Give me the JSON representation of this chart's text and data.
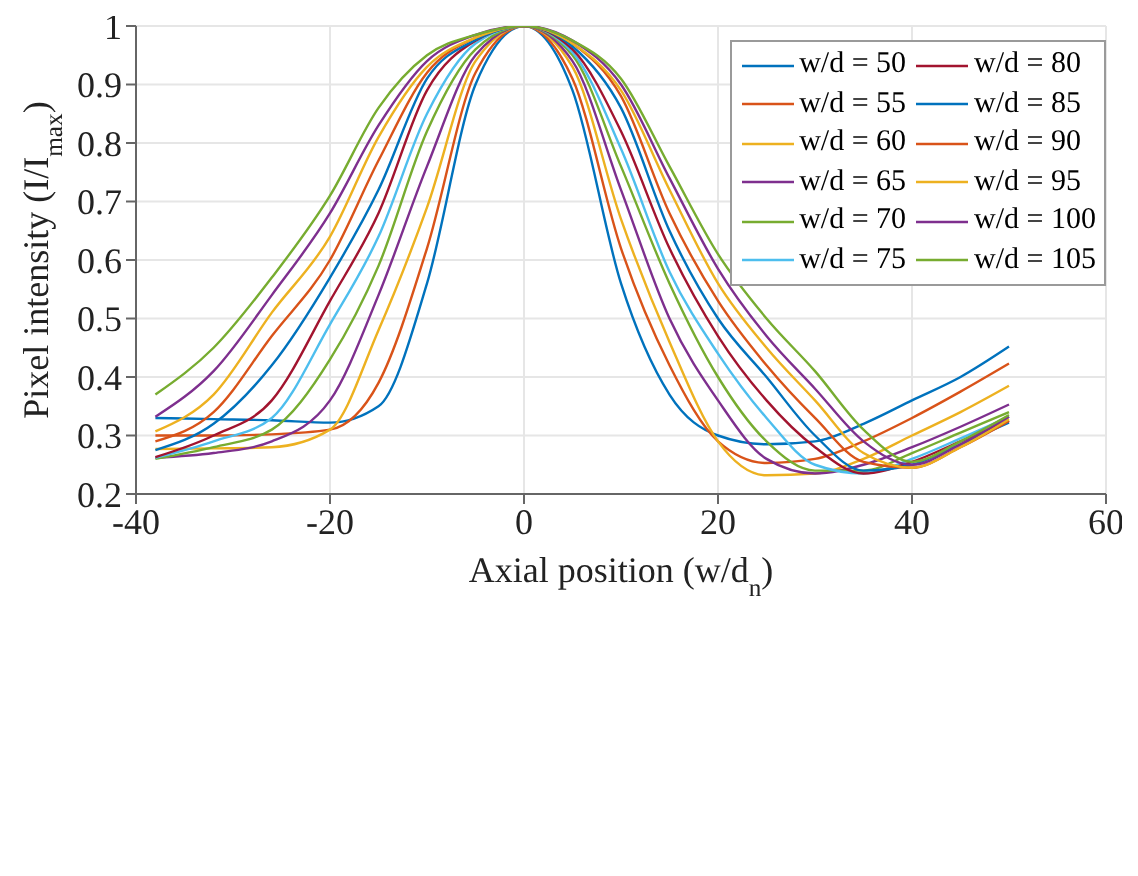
{
  "chart_data": {
    "type": "line",
    "xlabel": "Axial position (w/d$_{n}$)",
    "ylabel": "Pixel intensity (I/I$_{max}$)",
    "x": [
      -38,
      -32,
      -26,
      -20,
      -15,
      -10,
      -5,
      0,
      5,
      10,
      15,
      20,
      25,
      30,
      35,
      40,
      45,
      50
    ],
    "xlim": [
      -40,
      60
    ],
    "xticks": [
      -40,
      -20,
      0,
      20,
      40,
      60
    ],
    "ylim": [
      0.2,
      1
    ],
    "yticks": [
      0.2,
      0.3,
      0.4,
      0.5,
      0.6,
      0.7,
      0.8,
      0.9,
      1
    ],
    "grid": true,
    "legend": "top right",
    "marker": "none",
    "line_style": "solid",
    "series": [
      {
        "name": "w/d = 50",
        "color": "#0072bd",
        "values": [
          0.33,
          0.328,
          0.326,
          0.322,
          0.35,
          0.56,
          0.9,
          1,
          0.89,
          0.56,
          0.37,
          0.3,
          0.285,
          0.29,
          0.32,
          0.36,
          0.4,
          0.452
        ]
      },
      {
        "name": "w/d = 55",
        "color": "#d95319",
        "values": [
          0.3,
          0.3,
          0.302,
          0.31,
          0.39,
          0.62,
          0.92,
          1,
          0.91,
          0.62,
          0.42,
          0.29,
          0.253,
          0.26,
          0.29,
          0.33,
          0.375,
          0.423
        ]
      },
      {
        "name": "w/d = 60",
        "color": "#edb120",
        "values": [
          0.277,
          0.278,
          0.28,
          0.31,
          0.48,
          0.69,
          0.94,
          1,
          0.93,
          0.67,
          0.46,
          0.29,
          0.232,
          0.235,
          0.26,
          0.3,
          0.34,
          0.385
        ]
      },
      {
        "name": "w/d = 65",
        "color": "#7e2f8e",
        "values": [
          0.262,
          0.27,
          0.29,
          0.36,
          0.54,
          0.76,
          0.95,
          1,
          0.94,
          0.72,
          0.5,
          0.36,
          0.26,
          0.235,
          0.25,
          0.28,
          0.315,
          0.353
        ]
      },
      {
        "name": "w/d = 70",
        "color": "#77ac30",
        "values": [
          0.26,
          0.28,
          0.31,
          0.43,
          0.59,
          0.82,
          0.96,
          1,
          0.95,
          0.76,
          0.56,
          0.4,
          0.29,
          0.24,
          0.24,
          0.27,
          0.305,
          0.34
        ]
      },
      {
        "name": "w/d = 75",
        "color": "#4dbeee",
        "values": [
          0.262,
          0.29,
          0.33,
          0.49,
          0.64,
          0.85,
          0.97,
          1,
          0.955,
          0.79,
          0.58,
          0.44,
          0.33,
          0.25,
          0.235,
          0.26,
          0.295,
          0.332
        ]
      },
      {
        "name": "w/d = 80",
        "color": "#a2142f",
        "values": [
          0.263,
          0.3,
          0.36,
          0.53,
          0.68,
          0.89,
          0.975,
          1,
          0.96,
          0.82,
          0.62,
          0.47,
          0.36,
          0.28,
          0.235,
          0.255,
          0.29,
          0.325
        ]
      },
      {
        "name": "w/d = 85",
        "color": "#0072bd",
        "values": [
          0.275,
          0.32,
          0.42,
          0.57,
          0.72,
          0.91,
          0.976,
          1,
          0.965,
          0.86,
          0.65,
          0.5,
          0.4,
          0.3,
          0.24,
          0.25,
          0.285,
          0.322
        ]
      },
      {
        "name": "w/d = 90",
        "color": "#d95319",
        "values": [
          0.29,
          0.34,
          0.47,
          0.6,
          0.77,
          0.92,
          0.98,
          1,
          0.97,
          0.88,
          0.68,
          0.53,
          0.42,
          0.33,
          0.255,
          0.245,
          0.28,
          0.325
        ]
      },
      {
        "name": "w/d = 95",
        "color": "#edb120",
        "values": [
          0.307,
          0.37,
          0.51,
          0.64,
          0.81,
          0.93,
          0.98,
          1,
          0.97,
          0.89,
          0.72,
          0.56,
          0.45,
          0.36,
          0.27,
          0.245,
          0.28,
          0.328
        ]
      },
      {
        "name": "w/d = 100",
        "color": "#7e2f8e",
        "values": [
          0.332,
          0.41,
          0.54,
          0.68,
          0.83,
          0.94,
          0.985,
          1,
          0.975,
          0.9,
          0.74,
          0.585,
          0.47,
          0.38,
          0.29,
          0.25,
          0.285,
          0.332
        ]
      },
      {
        "name": "w/d = 105",
        "color": "#77ac30",
        "values": [
          0.37,
          0.45,
          0.57,
          0.71,
          0.86,
          0.95,
          0.985,
          1,
          0.975,
          0.91,
          0.76,
          0.61,
          0.5,
          0.41,
          0.31,
          0.255,
          0.29,
          0.335
        ]
      }
    ]
  }
}
